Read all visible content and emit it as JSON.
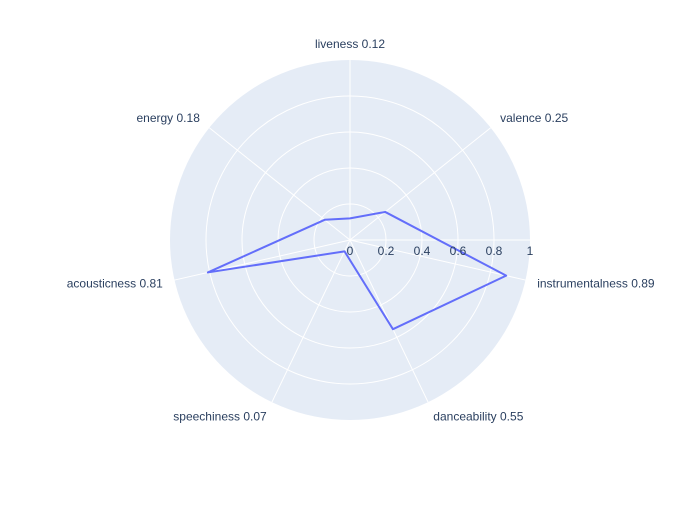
{
  "chart_data": {
    "type": "radar",
    "axis_labels": [
      "liveness 0.12",
      "valence 0.25",
      "instrumentalness 0.89",
      "danceability 0.55",
      "speechiness 0.07",
      "acousticness 0.81",
      "energy 0.18"
    ],
    "values": [
      0.12,
      0.25,
      0.89,
      0.55,
      0.07,
      0.81,
      0.18
    ],
    "radial_range": [
      0,
      1
    ],
    "radial_ticks": [
      "0",
      "0.2",
      "0.4",
      "0.6",
      "0.8",
      "1"
    ],
    "grid": true,
    "colors": {
      "polar_background": "#e5ecf6",
      "grid": "#ffffff",
      "line": "#636efa",
      "text": "#2a3f5f"
    }
  }
}
